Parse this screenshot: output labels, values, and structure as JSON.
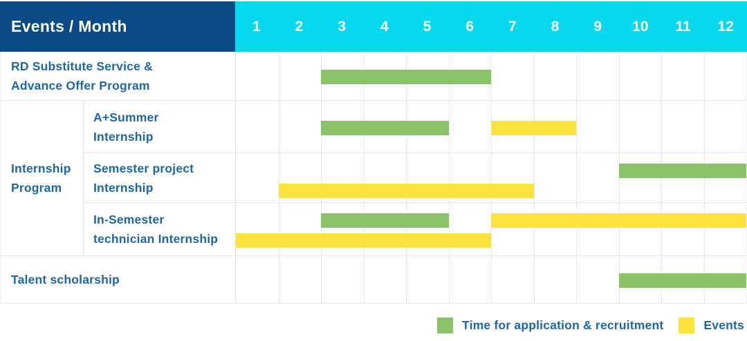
{
  "colors": {
    "navy": "#0a4b87",
    "cyan": "#06d9ee",
    "green": "#8bc369",
    "yellow": "#fde33e",
    "label_blue": "#1f66a8"
  },
  "table": {
    "header_label": "Events / Month",
    "months": [
      "1",
      "2",
      "3",
      "4",
      "5",
      "6",
      "7",
      "8",
      "9",
      "10",
      "11",
      "12"
    ],
    "labels": {
      "rd": [
        "RD Substitute Service &",
        "Advance Offer Program"
      ],
      "group": [
        "Internship",
        "Program"
      ],
      "a_summer": [
        "A+Summer",
        "Internship"
      ],
      "semester_project": [
        "Semester project",
        "Internship"
      ],
      "in_semester": [
        "In-Semester",
        "technician Internship"
      ],
      "talent": [
        "Talent scholarship"
      ]
    }
  },
  "legend": {
    "items": [
      {
        "kind": "application",
        "label": "Time for application & recruitment"
      },
      {
        "kind": "event",
        "label": "Events"
      }
    ]
  },
  "chart_data": {
    "type": "gantt",
    "x_axis": {
      "label": "Month",
      "ticks": [
        1,
        2,
        3,
        4,
        5,
        6,
        7,
        8,
        9,
        10,
        11,
        12
      ],
      "range": [
        1,
        12
      ]
    },
    "kinds": {
      "application": {
        "label": "Time for application & recruitment",
        "color": "#8bc369"
      },
      "event": {
        "label": "Events",
        "color": "#fde33e"
      }
    },
    "rows": [
      {
        "id": "rd-substitute-advance-offer",
        "label": "RD Substitute Service & Advance Offer Program",
        "group": null,
        "lines": 1,
        "bars": [
          {
            "kind": "application",
            "start": 3,
            "end": 6,
            "line": 0
          }
        ]
      },
      {
        "id": "a-plus-summer-internship",
        "label": "A+Summer Internship",
        "group": "Internship Program",
        "lines": 1,
        "bars": [
          {
            "kind": "application",
            "start": 3,
            "end": 5,
            "line": 0
          },
          {
            "kind": "event",
            "start": 7,
            "end": 8,
            "line": 0
          }
        ]
      },
      {
        "id": "semester-project-internship",
        "label": "Semester project Internship",
        "group": "Internship Program",
        "lines": 2,
        "bars": [
          {
            "kind": "application",
            "start": 10,
            "end": 12,
            "line": 0
          },
          {
            "kind": "event",
            "start": 2,
            "end": 7,
            "line": 1
          }
        ]
      },
      {
        "id": "in-semester-technician-internship",
        "label": "In-Semester technician Internship",
        "group": "Internship Program",
        "lines": 2,
        "bars": [
          {
            "kind": "application",
            "start": 3,
            "end": 5,
            "line": 0
          },
          {
            "kind": "event",
            "start": 7,
            "end": 12,
            "line": 0
          },
          {
            "kind": "event",
            "start": 1,
            "end": 6,
            "line": 1
          }
        ]
      },
      {
        "id": "talent-scholarship",
        "label": "Talent scholarship",
        "group": null,
        "lines": 1,
        "bars": [
          {
            "kind": "application",
            "start": 10,
            "end": 12,
            "line": 0
          }
        ]
      }
    ]
  }
}
